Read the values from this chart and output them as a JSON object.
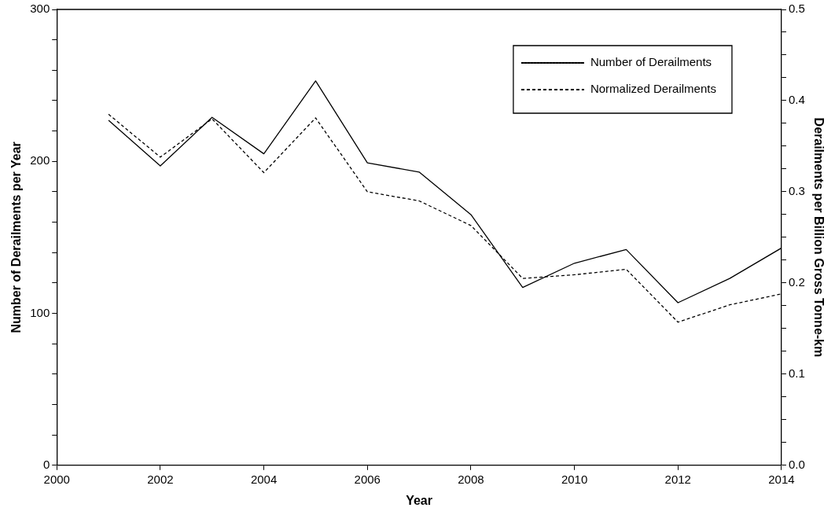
{
  "chart_data": {
    "type": "line",
    "xlabel": "Year",
    "ylabel": "Number of Derailments per Year",
    "y2label": "Derailments per Billion Gross Tonne-km",
    "x": [
      2001,
      2002,
      2003,
      2004,
      2005,
      2006,
      2007,
      2008,
      2009,
      2010,
      2011,
      2012,
      2013,
      2014
    ],
    "series": [
      {
        "name": "Number of Derailments",
        "color": "#000000",
        "line_style": "solid",
        "values": [
          227,
          197,
          229,
          205,
          253,
          199,
          193,
          165,
          117,
          133,
          142,
          107,
          123,
          143
        ]
      },
      {
        "name": "Normalized Derailments",
        "color": "#000000",
        "line_style": "dashed",
        "axis": "y2",
        "values": [
          0.385,
          0.338,
          0.38,
          0.321,
          0.381,
          0.3,
          0.29,
          0.263,
          0.205,
          0.209,
          0.215,
          0.157,
          0.176,
          0.188
        ]
      }
    ],
    "xlim": [
      2000,
      2014
    ],
    "xticks": [
      2000,
      2002,
      2004,
      2006,
      2008,
      2010,
      2012,
      2014
    ],
    "ylim": [
      0,
      300
    ],
    "yticks": [
      0,
      {
        "value": 20,
        "label": null
      },
      {
        "value": 40,
        "label": null
      },
      {
        "value": 60,
        "label": null
      },
      {
        "value": 80,
        "label": null
      },
      100,
      {
        "value": 120,
        "label": null
      },
      {
        "value": 140,
        "label": null
      },
      {
        "value": 160,
        "label": null
      },
      {
        "value": 180,
        "label": null
      },
      200,
      {
        "value": 220,
        "label": null
      },
      {
        "value": 240,
        "label": null
      },
      {
        "value": 260,
        "label": null
      },
      {
        "value": 280,
        "label": null
      },
      300
    ],
    "y2lim": [
      0,
      0.5
    ],
    "y2ticks": [
      {
        "value": 0,
        "label": "0.0"
      },
      {
        "value": 0.025,
        "label": null
      },
      {
        "value": 0.05,
        "label": null
      },
      {
        "value": 0.075,
        "label": null
      },
      0.1,
      {
        "value": 0.125,
        "label": null
      },
      {
        "value": 0.15,
        "label": null
      },
      {
        "value": 0.175,
        "label": null
      },
      0.2,
      {
        "value": 0.225,
        "label": null
      },
      {
        "value": 0.25,
        "label": null
      },
      {
        "value": 0.275,
        "label": null
      },
      0.3,
      {
        "value": 0.325,
        "label": null
      },
      {
        "value": 0.35,
        "label": null
      },
      {
        "value": 0.375,
        "label": null
      },
      0.4,
      {
        "value": 0.425,
        "label": null
      },
      {
        "value": 0.45,
        "label": null
      },
      {
        "value": 0.475,
        "label": null
      },
      0.5
    ],
    "grid": false,
    "legend": "top right",
    "marker": "none"
  }
}
